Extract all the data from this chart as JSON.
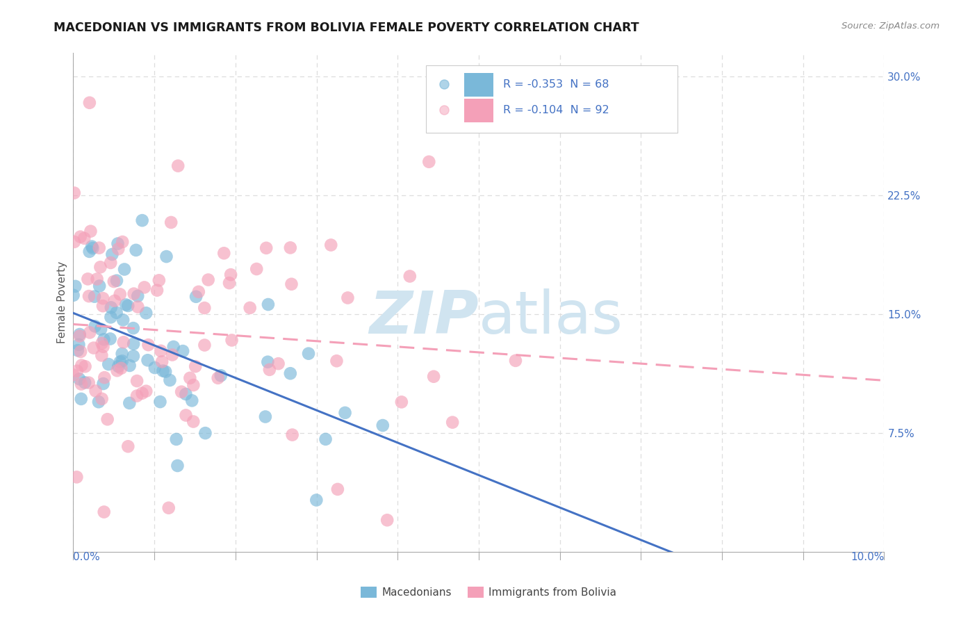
{
  "title": "MACEDONIAN VS IMMIGRANTS FROM BOLIVIA FEMALE POVERTY CORRELATION CHART",
  "source": "Source: ZipAtlas.com",
  "ylabel": "Female Poverty",
  "y_ticks": [
    0.075,
    0.15,
    0.225,
    0.3
  ],
  "y_tick_labels": [
    "7.5%",
    "15.0%",
    "22.5%",
    "30.0%"
  ],
  "x_min": 0.0,
  "x_max": 0.1,
  "y_min": 0.0,
  "y_max": 0.315,
  "mac_color": "#7ab8d9",
  "bol_color": "#f4a0b8",
  "mac_r": -0.353,
  "mac_n": 68,
  "bol_r": -0.104,
  "bol_n": 92,
  "line_color_mac": "#4472c4",
  "line_color_bol": "#f4a0b8",
  "tick_color": "#4472c4",
  "title_color": "#1a1a1a",
  "source_color": "#888888",
  "grid_color": "#dddddd",
  "watermark_color": "#d0e4f0",
  "background": "#ffffff",
  "legend_text_color": "#4472c4",
  "bottom_legend_text_color": "#444444"
}
